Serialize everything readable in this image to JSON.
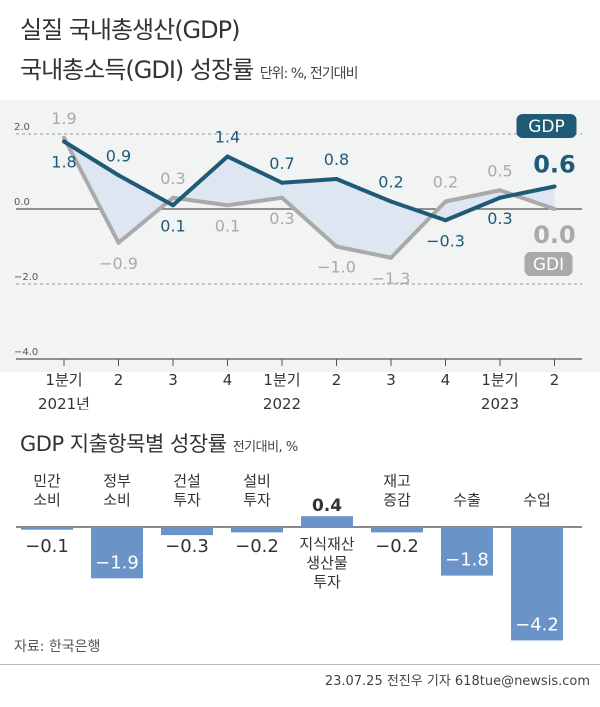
{
  "titles": {
    "line1": "실질 국내총생산(GDP)",
    "line2": "국내총소득(GDI) 성장률",
    "unit": "단위: %, 전기대비"
  },
  "colors": {
    "gdp": "#1f5a77",
    "gdi": "#aaaaaa",
    "bar": "#6a93c7",
    "panel": "#f2f3f3",
    "fill": "#dde6f1"
  },
  "chart_data": [
    {
      "type": "line",
      "title": "실질 국내총생산(GDP) 국내총소득(GDI) 성장률",
      "unit": "단위: %, 전기대비",
      "categories": [
        "1분기",
        "2",
        "3",
        "4",
        "1분기",
        "2",
        "3",
        "4",
        "1분기",
        "2"
      ],
      "year_labels": [
        "2021년",
        "2022",
        "2023"
      ],
      "y_ticks": [
        "2.0",
        "0.0",
        "−2.0",
        "−4.0"
      ],
      "ylim": [
        -4.0,
        2.2
      ],
      "series": [
        {
          "name": "GDP",
          "values": [
            1.8,
            0.9,
            0.1,
            1.4,
            0.7,
            0.8,
            0.2,
            -0.3,
            0.3,
            0.6
          ],
          "labels": [
            "1.8",
            "0.9",
            "0.1",
            "1.4",
            "0.7",
            "0.8",
            "0.2",
            "−0.3",
            "0.3",
            "0.6"
          ]
        },
        {
          "name": "GDI",
          "values": [
            1.9,
            -0.9,
            0.3,
            0.1,
            0.3,
            -1.0,
            -1.3,
            0.2,
            0.5,
            0.0
          ],
          "labels": [
            "1.9",
            "−0.9",
            "0.3",
            "0.1",
            "0.3",
            "−1.0",
            "−1.3",
            "0.2",
            "0.5",
            "0.0"
          ]
        }
      ]
    },
    {
      "type": "bar",
      "title": "GDP 지출항목별 성장률",
      "unit": "전기대비, %",
      "categories": [
        "민간\n소비",
        "정부\n소비",
        "건설\n투자",
        "설비\n투자",
        "지식재산\n생산물\n투자",
        "재고\n증감",
        "수출",
        "수입"
      ],
      "values": [
        -0.1,
        -1.9,
        -0.3,
        -0.2,
        0.4,
        -0.2,
        -1.8,
        -4.2
      ],
      "labels": [
        "−0.1",
        "−1.9",
        "−0.3",
        "−0.2",
        "0.4",
        "−0.2",
        "−1.8",
        "−4.2"
      ]
    }
  ],
  "footer": {
    "source": "자료: 한국은행",
    "credit": "23.07.25 전진우 기자 618tue@newsis.com"
  }
}
